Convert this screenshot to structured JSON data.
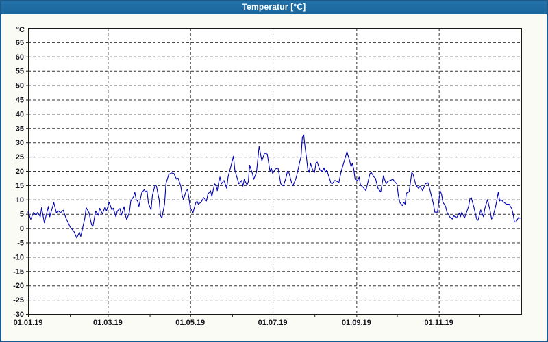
{
  "window": {
    "title": "Temperatur [°C]"
  },
  "colors": {
    "titlebar_bg": "#1e6a9f",
    "titlebar_text": "#ffffff",
    "window_border": "#1a5a8a",
    "window_bg": "#fbfbf5",
    "plot_bg": "#ffffff",
    "plot_border": "#1a1a1a",
    "gridline": "#333333",
    "label_text": "#14141e",
    "series_line": "#0000b4"
  },
  "chart_data": {
    "type": "line",
    "title": "Temperatur [°C]",
    "ylabel": "°C",
    "ylim": [
      -30,
      70
    ],
    "y_tick_step": 5,
    "y_ticks": [
      65,
      60,
      55,
      50,
      45,
      40,
      35,
      30,
      25,
      20,
      15,
      10,
      5,
      0,
      -5,
      -10,
      -15,
      -20,
      -25,
      -30
    ],
    "x_tick_labels": [
      "01.01.19",
      "01.03.19",
      "01.05.19",
      "01.07.19",
      "01.09.19",
      "01.11.19"
    ],
    "x_tick_days": [
      0,
      59,
      120,
      181,
      243,
      304
    ],
    "month_tick_days": [
      0,
      31,
      59,
      90,
      120,
      151,
      181,
      212,
      243,
      273,
      304,
      334
    ],
    "x_range_days": [
      0,
      365
    ],
    "grid": "dashed",
    "legend": "none",
    "series": [
      {
        "name": "Temperatur",
        "unit": "°C",
        "points": [
          [
            0,
            5.7
          ],
          [
            2,
            3.1
          ],
          [
            4,
            5.5
          ],
          [
            6,
            4.5
          ],
          [
            7,
            5.5
          ],
          [
            9,
            4.0
          ],
          [
            10,
            7.2
          ],
          [
            12,
            1.9
          ],
          [
            15,
            7.6
          ],
          [
            16,
            4.0
          ],
          [
            19,
            9.0
          ],
          [
            21,
            5.3
          ],
          [
            22,
            6.2
          ],
          [
            24,
            5.4
          ],
          [
            26,
            6.3
          ],
          [
            28,
            3.6
          ],
          [
            31,
            0.5
          ],
          [
            34,
            -1.2
          ],
          [
            36,
            -3.4
          ],
          [
            38,
            -1.4
          ],
          [
            39,
            -2.9
          ],
          [
            42,
            3.5
          ],
          [
            43,
            7.2
          ],
          [
            45,
            5.5
          ],
          [
            47,
            1.2
          ],
          [
            48,
            0.7
          ],
          [
            50,
            6.0
          ],
          [
            52,
            4.5
          ],
          [
            53,
            7.0
          ],
          [
            55,
            5.0
          ],
          [
            57,
            7.5
          ],
          [
            58,
            6.0
          ],
          [
            60,
            9.1
          ],
          [
            62,
            6.4
          ],
          [
            63,
            7.0
          ],
          [
            65,
            4.0
          ],
          [
            66,
            6.0
          ],
          [
            68,
            6.9
          ],
          [
            69,
            4.5
          ],
          [
            71,
            7.5
          ],
          [
            72,
            4.5
          ],
          [
            73,
            3.0
          ],
          [
            75,
            5.6
          ],
          [
            76,
            9.5
          ],
          [
            78,
            11.0
          ],
          [
            79,
            12.6
          ],
          [
            80,
            10.0
          ],
          [
            81,
            9.5
          ],
          [
            82,
            7.6
          ],
          [
            84,
            12.3
          ],
          [
            86,
            13.5
          ],
          [
            87,
            12.7
          ],
          [
            88,
            13.1
          ],
          [
            89,
            8.8
          ],
          [
            91,
            6.4
          ],
          [
            92,
            11.5
          ],
          [
            94,
            15.1
          ],
          [
            95,
            14.7
          ],
          [
            97,
            10.0
          ],
          [
            98,
            4.4
          ],
          [
            99,
            3.6
          ],
          [
            101,
            8.4
          ],
          [
            102,
            15.5
          ],
          [
            104,
            18.7
          ],
          [
            106,
            19.3
          ],
          [
            108,
            19.1
          ],
          [
            109,
            17.9
          ],
          [
            110,
            17.1
          ],
          [
            111,
            17.5
          ],
          [
            113,
            14.7
          ],
          [
            114,
            11.5
          ],
          [
            115,
            10.0
          ],
          [
            117,
            13.1
          ],
          [
            118,
            13.5
          ],
          [
            119,
            10.7
          ],
          [
            120,
            7.2
          ],
          [
            122,
            5.4
          ],
          [
            124,
            8.8
          ],
          [
            125,
            9.5
          ],
          [
            126,
            8.4
          ],
          [
            128,
            9.1
          ],
          [
            130,
            10.7
          ],
          [
            132,
            9.5
          ],
          [
            133,
            11.9
          ],
          [
            135,
            13.1
          ],
          [
            136,
            11.1
          ],
          [
            138,
            15.5
          ],
          [
            139,
            15.1
          ],
          [
            140,
            13.1
          ],
          [
            141,
            15.9
          ],
          [
            142,
            17.9
          ],
          [
            143,
            15.5
          ],
          [
            145,
            16.7
          ],
          [
            147,
            13.9
          ],
          [
            148,
            17.9
          ],
          [
            150,
            21.5
          ],
          [
            152,
            25.2
          ],
          [
            153,
            20.3
          ],
          [
            156,
            15.5
          ],
          [
            158,
            16.7
          ],
          [
            159,
            14.7
          ],
          [
            160,
            17.1
          ],
          [
            162,
            15.1
          ],
          [
            163,
            16.3
          ],
          [
            164,
            22.0
          ],
          [
            166,
            19.1
          ],
          [
            167,
            17.1
          ],
          [
            169,
            19.5
          ],
          [
            171,
            28.6
          ],
          [
            173,
            23.5
          ],
          [
            175,
            26.3
          ],
          [
            177,
            25.9
          ],
          [
            179,
            19.9
          ],
          [
            180,
            21.1
          ],
          [
            181,
            19.1
          ],
          [
            183,
            20.7
          ],
          [
            185,
            21.1
          ],
          [
            187,
            15.5
          ],
          [
            189,
            14.8
          ],
          [
            191,
            17.9
          ],
          [
            192,
            19.9
          ],
          [
            193,
            19.5
          ],
          [
            195,
            15.9
          ],
          [
            196,
            14.8
          ],
          [
            198,
            17.1
          ],
          [
            199,
            18.7
          ],
          [
            201,
            23.1
          ],
          [
            202,
            25.1
          ],
          [
            203,
            31.8
          ],
          [
            204,
            32.6
          ],
          [
            205,
            28.2
          ],
          [
            206,
            24.7
          ],
          [
            207,
            20.7
          ],
          [
            208,
            19.5
          ],
          [
            209,
            22.7
          ],
          [
            211,
            19.9
          ],
          [
            212,
            19.5
          ],
          [
            213,
            22.7
          ],
          [
            214,
            23.1
          ],
          [
            216,
            20.3
          ],
          [
            218,
            19.9
          ],
          [
            219,
            21.1
          ],
          [
            220,
            19.5
          ],
          [
            221,
            20.3
          ],
          [
            223,
            17.5
          ],
          [
            224,
            15.9
          ],
          [
            225,
            15.5
          ],
          [
            227,
            16.7
          ],
          [
            229,
            16.3
          ],
          [
            230,
            15.9
          ],
          [
            231,
            18.3
          ],
          [
            232,
            20.3
          ],
          [
            234,
            23.5
          ],
          [
            236,
            26.8
          ],
          [
            238,
            23.5
          ],
          [
            239,
            21.5
          ],
          [
            240,
            22.7
          ],
          [
            241,
            20.7
          ],
          [
            242,
            17.1
          ],
          [
            244,
            16.7
          ],
          [
            245,
            17.9
          ],
          [
            246,
            15.1
          ],
          [
            248,
            14.3
          ],
          [
            250,
            13.1
          ],
          [
            253,
            19.1
          ],
          [
            254,
            19.5
          ],
          [
            256,
            17.9
          ],
          [
            257,
            17.5
          ],
          [
            259,
            13.9
          ],
          [
            261,
            12.7
          ],
          [
            263,
            18.3
          ],
          [
            265,
            15.5
          ],
          [
            266,
            16.3
          ],
          [
            268,
            16.7
          ],
          [
            270,
            17.1
          ],
          [
            272,
            15.9
          ],
          [
            273,
            15.5
          ],
          [
            274,
            11.5
          ],
          [
            275,
            9.1
          ],
          [
            277,
            7.9
          ],
          [
            278,
            9.1
          ],
          [
            279,
            8.4
          ],
          [
            280,
            12.3
          ],
          [
            282,
            12.7
          ],
          [
            284,
            19.6
          ],
          [
            285,
            18.7
          ],
          [
            287,
            15.1
          ],
          [
            289,
            13.9
          ],
          [
            290,
            14.7
          ],
          [
            292,
            13.1
          ],
          [
            294,
            15.5
          ],
          [
            296,
            15.9
          ],
          [
            298,
            12.3
          ],
          [
            300,
            8.4
          ],
          [
            301,
            5.6
          ],
          [
            303,
            5.6
          ],
          [
            305,
            13.1
          ],
          [
            306,
            11.9
          ],
          [
            307,
            9.1
          ],
          [
            309,
            7.6
          ],
          [
            310,
            5.6
          ],
          [
            312,
            4.0
          ],
          [
            314,
            3.2
          ],
          [
            315,
            4.4
          ],
          [
            317,
            3.6
          ],
          [
            319,
            5.2
          ],
          [
            320,
            4.0
          ],
          [
            321,
            5.6
          ],
          [
            323,
            3.6
          ],
          [
            326,
            7.6
          ],
          [
            327,
            10.3
          ],
          [
            328,
            10.7
          ],
          [
            330,
            7.2
          ],
          [
            332,
            3.2
          ],
          [
            333,
            2.8
          ],
          [
            335,
            6.4
          ],
          [
            337,
            4.0
          ],
          [
            338,
            6.8
          ],
          [
            340,
            10.0
          ],
          [
            342,
            6.0
          ],
          [
            343,
            3.2
          ],
          [
            344,
            4.0
          ],
          [
            346,
            7.6
          ],
          [
            347,
            10.0
          ],
          [
            348,
            12.7
          ],
          [
            349,
            9.5
          ],
          [
            350,
            10.0
          ],
          [
            352,
            9.1
          ],
          [
            354,
            8.4
          ],
          [
            356,
            8.4
          ],
          [
            358,
            6.8
          ],
          [
            359,
            4.8
          ],
          [
            360,
            2.2
          ],
          [
            361,
            2.2
          ],
          [
            363,
            3.8
          ],
          [
            364,
            3.5
          ]
        ]
      }
    ]
  }
}
